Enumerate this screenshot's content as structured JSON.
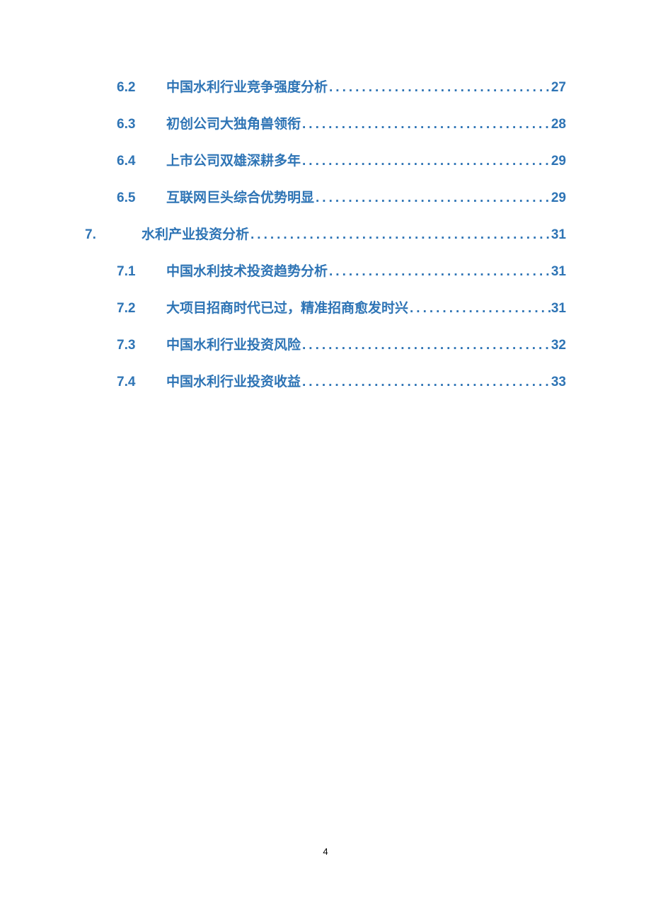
{
  "toc": {
    "text_color": "#2e74b5",
    "font_size": 19,
    "font_weight": "bold",
    "dots_char": "........................................................................",
    "entries": [
      {
        "level": 2,
        "number": "6.2",
        "title": "中国水利行业竞争强度分析 ",
        "page": "27"
      },
      {
        "level": 2,
        "number": "6.3",
        "title": "初创公司大独角兽领衔 ",
        "page": "28"
      },
      {
        "level": 2,
        "number": "6.4",
        "title": "上市公司双雄深耕多年 ",
        "page": "29"
      },
      {
        "level": 2,
        "number": "6.5",
        "title": "互联网巨头综合优势明显",
        "page": "29"
      },
      {
        "level": 1,
        "number": "7.",
        "title": "水利产业投资分析 ",
        "page": "31"
      },
      {
        "level": 2,
        "number": "7.1",
        "title": "中国水利技术投资趋势分析 ",
        "page": "31"
      },
      {
        "level": 2,
        "number": "7.2",
        "title": "大项目招商时代已过，精准招商愈发时兴 ",
        "page": "31"
      },
      {
        "level": 2,
        "number": "7.3",
        "title": "中国水利行业投资风险 ",
        "page": "32"
      },
      {
        "level": 2,
        "number": "7.4",
        "title": "中国水利行业投资收益 ",
        "page": "33"
      }
    ]
  },
  "footer": {
    "page_number": "4",
    "font_size": 13,
    "color": "#000000"
  }
}
